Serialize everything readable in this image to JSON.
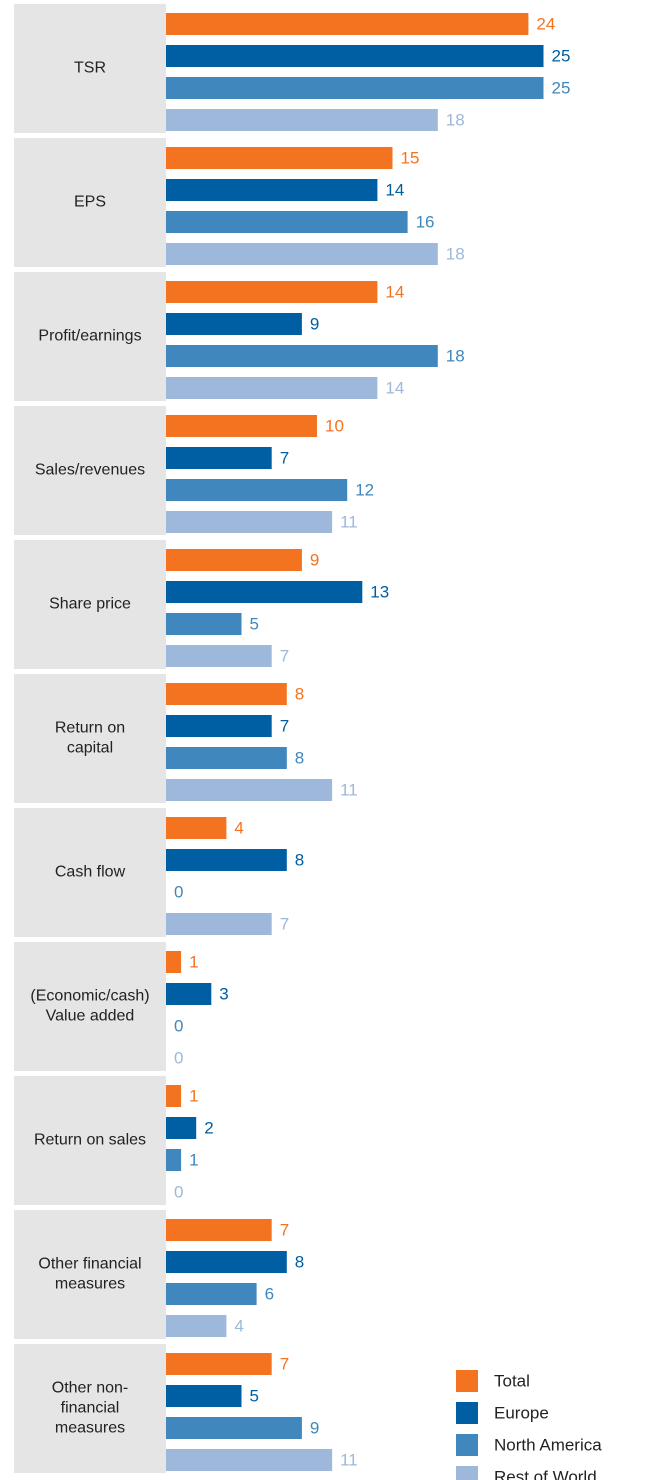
{
  "chart_data": {
    "type": "bar",
    "orientation": "horizontal",
    "title": "",
    "xlabel": "",
    "ylabel": "",
    "grid": false,
    "legend_position": "bottom-right",
    "categories": [
      [
        "TSR"
      ],
      [
        "EPS"
      ],
      [
        "Profit/earnings"
      ],
      [
        "Sales/revenues"
      ],
      [
        "Share price"
      ],
      [
        "Return on",
        "capital"
      ],
      [
        "Cash flow"
      ],
      [
        "(Economic/cash)",
        "Value added"
      ],
      [
        "Return on sales"
      ],
      [
        "Other financial",
        "measures"
      ],
      [
        "Other non-",
        "financial",
        "measures"
      ]
    ],
    "series": [
      {
        "name": "Total",
        "color": "#f47321",
        "values": [
          24,
          15,
          14,
          10,
          9,
          8,
          4,
          1,
          1,
          7,
          7
        ]
      },
      {
        "name": "Europe",
        "color": "#005ea2",
        "values": [
          25,
          14,
          9,
          7,
          13,
          7,
          8,
          3,
          2,
          8,
          5
        ]
      },
      {
        "name": "North America",
        "color": "#3f87bd",
        "values": [
          25,
          16,
          18,
          12,
          5,
          8,
          0,
          0,
          1,
          6,
          9
        ]
      },
      {
        "name": "Rest of World",
        "color": "#9db8da",
        "values": [
          18,
          18,
          14,
          11,
          7,
          11,
          7,
          0,
          0,
          4,
          11
        ]
      }
    ],
    "xlim": [
      0,
      25
    ]
  }
}
